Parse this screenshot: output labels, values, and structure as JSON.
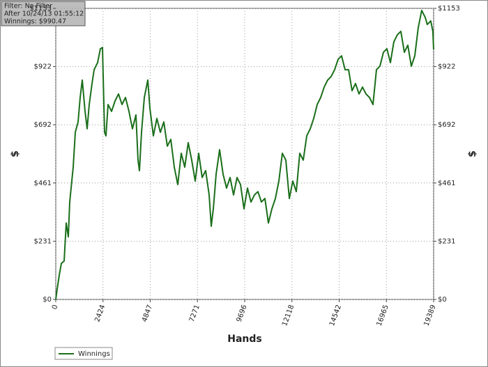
{
  "chart_data": {
    "type": "line",
    "annotations": [
      "Filter: No Filter",
      "After 10/24/13 01:55:12",
      "Winnings: $990.47"
    ],
    "xlabel": "Hands",
    "ylabel": "$",
    "x": [
      0,
      72,
      179,
      286,
      429,
      537,
      644,
      715,
      894,
      1002,
      1145,
      1252,
      1359,
      1502,
      1610,
      1717,
      1860,
      1967,
      2146,
      2289,
      2397,
      2432,
      2504,
      2575,
      2683,
      2862,
      3040,
      3219,
      3398,
      3577,
      3756,
      3935,
      4114,
      4221,
      4292,
      4400,
      4543,
      4722,
      4829,
      5008,
      5187,
      5366,
      5544,
      5723,
      5902,
      6081,
      6260,
      6439,
      6617,
      6796,
      6975,
      7154,
      7333,
      7512,
      7691,
      7869,
      7977,
      8084,
      8227,
      8406,
      8585,
      8764,
      8943,
      9121,
      9300,
      9479,
      9658,
      9837,
      10016,
      10194,
      10373,
      10552,
      10731,
      10910,
      11089,
      11268,
      11446,
      11625,
      11804,
      11983,
      12162,
      12341,
      12520,
      12698,
      12877,
      13056,
      13235,
      13414,
      13593,
      13771,
      13950,
      14129,
      14308,
      14487,
      14666,
      14845,
      15023,
      15202,
      15381,
      15560,
      15739,
      15918,
      16097,
      16275,
      16454,
      16633,
      16812,
      16991,
      17170,
      17348,
      17527,
      17706,
      17885,
      18064,
      18243,
      18422,
      18600,
      18779,
      18958,
      19065,
      19244,
      19351,
      19389
    ],
    "series": [
      {
        "name": "Winnings",
        "color": "#1a6e1a",
        "values": [
          0,
          41,
          96,
          143,
          152,
          303,
          248,
          386,
          524,
          662,
          703,
          800,
          869,
          745,
          676,
          772,
          855,
          910,
          938,
          993,
          998,
          883,
          662,
          648,
          772,
          745,
          786,
          814,
          772,
          800,
          745,
          676,
          731,
          552,
          510,
          662,
          800,
          869,
          758,
          648,
          717,
          662,
          703,
          607,
          634,
          524,
          455,
          579,
          524,
          621,
          552,
          469,
          579,
          483,
          510,
          414,
          290,
          359,
          496,
          593,
          496,
          441,
          483,
          414,
          483,
          455,
          359,
          441,
          386,
          414,
          427,
          386,
          400,
          303,
          359,
          400,
          469,
          579,
          552,
          400,
          469,
          427,
          579,
          552,
          648,
          676,
          717,
          772,
          800,
          841,
          869,
          883,
          910,
          951,
          965,
          910,
          910,
          827,
          855,
          814,
          841,
          814,
          800,
          772,
          910,
          924,
          979,
          993,
          938,
          1020,
          1048,
          1062,
          979,
          1007,
          924,
          965,
          1076,
          1145,
          1117,
          1089,
          1103,
          1062,
          990.47
        ]
      }
    ],
    "xlim": [
      0,
      19389
    ],
    "xticks": [
      0,
      2424,
      4847,
      7271,
      9696,
      12118,
      14542,
      16965,
      19389
    ],
    "ylim": [
      0,
      1153
    ],
    "yticks": [
      {
        "value": 0,
        "label": "$0"
      },
      {
        "value": 230.6,
        "label": "$231"
      },
      {
        "value": 461.2,
        "label": "$461"
      },
      {
        "value": 691.8,
        "label": "$692"
      },
      {
        "value": 922.4,
        "label": "$922"
      },
      {
        "value": 1153,
        "label": "$1153"
      }
    ],
    "grid": true
  }
}
